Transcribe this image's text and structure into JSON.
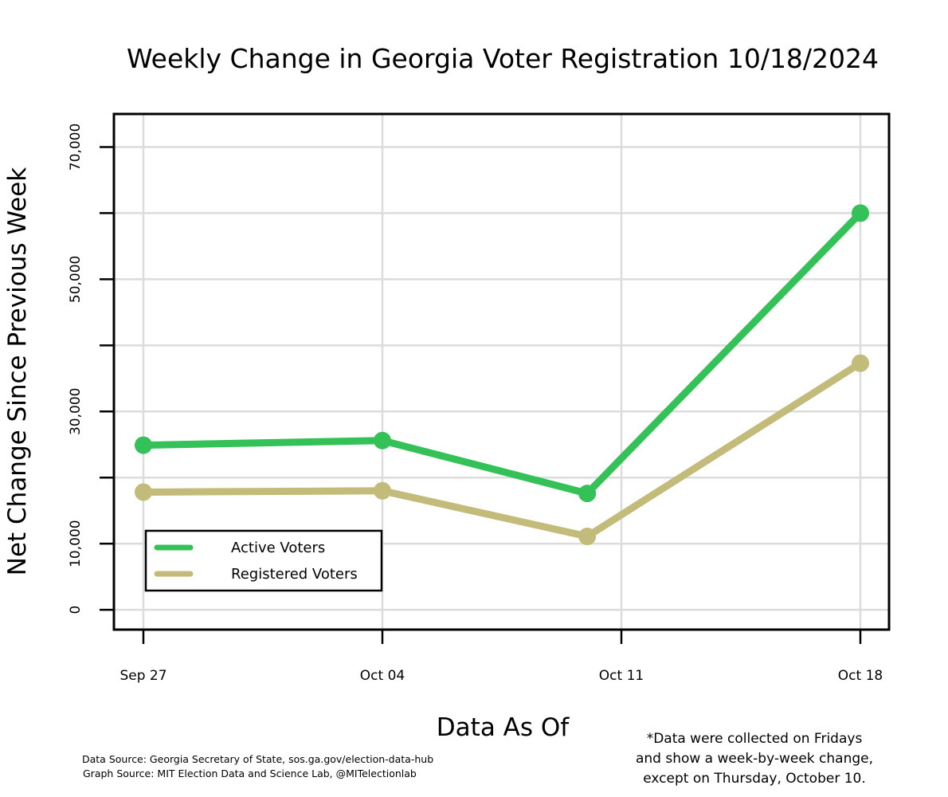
{
  "chart_data": {
    "type": "line",
    "title": "Weekly Change in Georgia Voter Registration 10/18/2024",
    "xlabel": "Data As Of",
    "ylabel": "Net Change Since Previous Week",
    "x": [
      "2024-09-27",
      "2024-10-04",
      "2024-10-10",
      "2024-10-18"
    ],
    "x_tick_labels": [
      {
        "date": "2024-09-27",
        "label": "Sep 27"
      },
      {
        "date": "2024-10-04",
        "label": "Oct 04"
      },
      {
        "date": "2024-10-11",
        "label": "Oct 11"
      },
      {
        "date": "2024-10-18",
        "label": "Oct 18"
      }
    ],
    "ylim": [
      -3000,
      75000
    ],
    "y_ticks": [
      0,
      10000,
      20000,
      30000,
      40000,
      50000,
      60000,
      70000
    ],
    "y_tick_labels": [
      "0",
      "10,000",
      "",
      "30,000",
      "",
      "50,000",
      "",
      "70,000"
    ],
    "grid": true,
    "legend_position": "bottom-left",
    "series": [
      {
        "name": "Active Voters",
        "color": "#34c157",
        "values": [
          24900,
          25600,
          17600,
          60000
        ]
      },
      {
        "name": "Registered Voters",
        "color": "#c2bb7a",
        "values": [
          17800,
          18000,
          11100,
          37300
        ]
      }
    ]
  },
  "footnote": [
    "*Data were collected on Fridays",
    "and show a week-by-week change,",
    "except on Thursday, October 10."
  ],
  "sources": [
    "Data Source: Georgia Secretary of State, sos.ga.gov/election-data-hub",
    "Graph Source: MIT Election Data and Science Lab, @MITelectionlab"
  ]
}
